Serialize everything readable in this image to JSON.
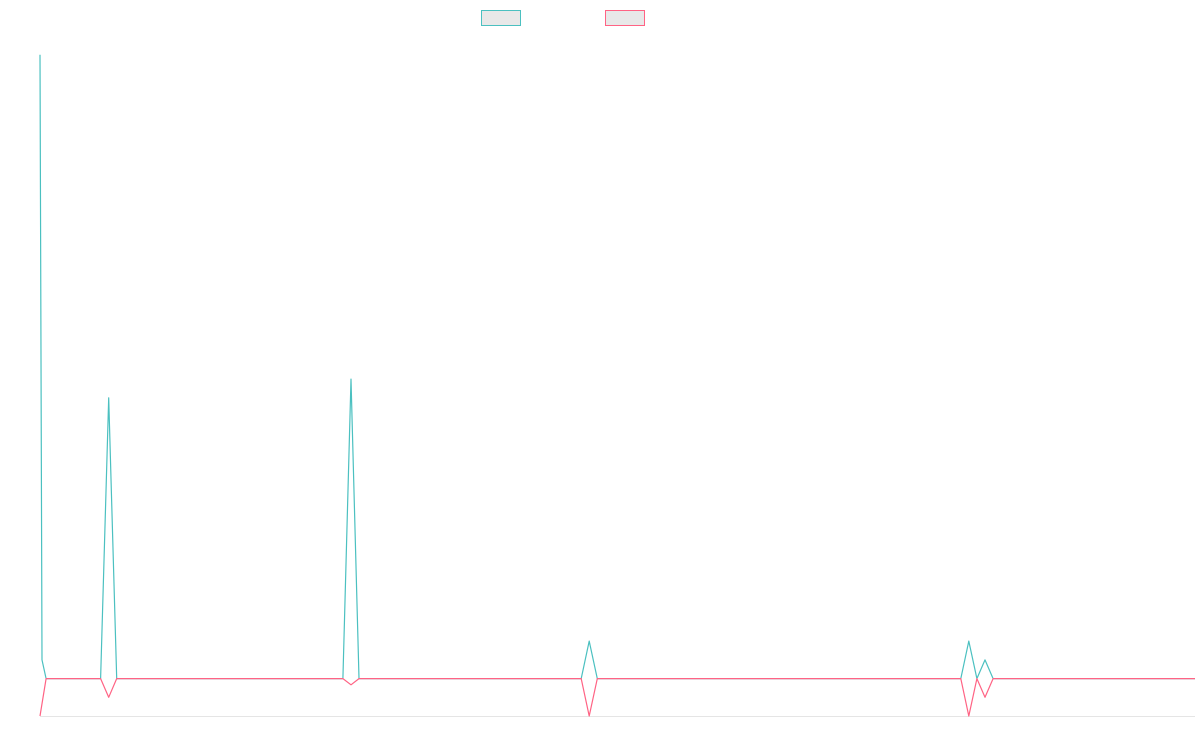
{
  "chart_data": {
    "type": "line",
    "title": "",
    "xlabel": "",
    "ylabel": "",
    "grid": false,
    "legend_position": "top-center",
    "series": [
      {
        "name": "",
        "color": "#4bc0c0",
        "points": [
          [
            0,
            100
          ],
          [
            0.05,
            3
          ],
          [
            0.15,
            0
          ],
          [
            1.5,
            0
          ],
          [
            1.7,
            45
          ],
          [
            1.9,
            0
          ],
          [
            7.5,
            0
          ],
          [
            7.7,
            48
          ],
          [
            7.9,
            0
          ],
          [
            13.4,
            0
          ],
          [
            13.6,
            6
          ],
          [
            13.8,
            0
          ],
          [
            22.8,
            0
          ],
          [
            23.0,
            6
          ],
          [
            23.2,
            0
          ],
          [
            23.2,
            0
          ],
          [
            23.4,
            3
          ],
          [
            23.6,
            0
          ],
          [
            28.6,
            0
          ]
        ]
      },
      {
        "name": "",
        "color": "#ff6384",
        "points": [
          [
            0,
            -6
          ],
          [
            0.15,
            0
          ],
          [
            1.5,
            0
          ],
          [
            1.7,
            -3
          ],
          [
            1.9,
            0
          ],
          [
            7.5,
            0
          ],
          [
            7.7,
            -1
          ],
          [
            7.9,
            0
          ],
          [
            13.4,
            0
          ],
          [
            13.6,
            -6
          ],
          [
            13.8,
            0
          ],
          [
            22.8,
            0
          ],
          [
            23.0,
            -6
          ],
          [
            23.2,
            0
          ],
          [
            23.2,
            0
          ],
          [
            23.4,
            -3
          ],
          [
            23.6,
            0
          ],
          [
            28.6,
            0
          ]
        ]
      }
    ],
    "xlim": [
      0,
      28.6
    ],
    "ylim": [
      -6,
      103
    ]
  }
}
